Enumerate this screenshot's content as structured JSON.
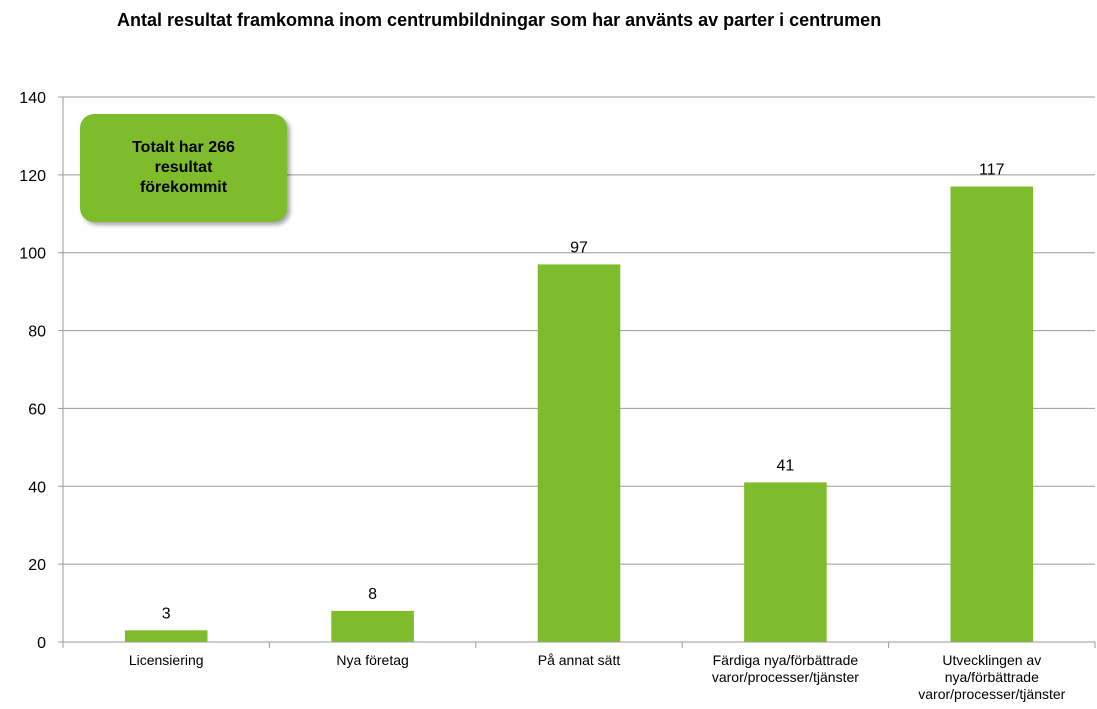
{
  "chart_data": {
    "type": "bar",
    "title": "Antal resultat framkomna inom centrumbildningar som har använts av parter i centrumen",
    "annotation": "Totalt har 266 resultat förekommit",
    "categories": [
      "Licensiering",
      "Nya företag",
      "På annat sätt",
      "Färdiga nya/förbättrade varor/processer/tjänster",
      "Utvecklingen av nya/förbättrade varor/processer/tjänster"
    ],
    "values": [
      3,
      8,
      97,
      41,
      117
    ],
    "color": "#7ebc2c",
    "ylim": [
      0,
      140
    ],
    "yticks": [
      0,
      20,
      40,
      60,
      80,
      100,
      120,
      140
    ],
    "grid": true
  }
}
